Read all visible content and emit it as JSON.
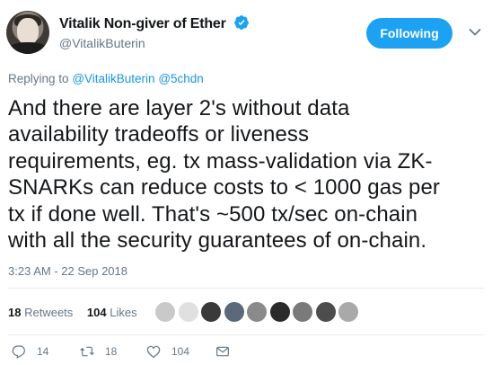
{
  "author": {
    "display_name": "Vitalik Non-giver of Ether",
    "handle": "@VitalikButerin"
  },
  "follow_button": {
    "label": "Following"
  },
  "reply_context": {
    "prefix": "Replying to",
    "mentions": [
      "@VitalikButerin",
      "@5chdn"
    ]
  },
  "tweet": {
    "lines": [
      "And there are layer 2's without data",
      "availability tradeoffs or liveness",
      "requirements, eg. tx mass-validation via ZK-",
      "SNARKs can reduce costs to < 1000 gas per",
      "tx if done well. That's ~500 tx/sec on-chain",
      "with all the security guarantees of on-chain."
    ],
    "timestamp": "3:23 AM - 22 Sep 2018"
  },
  "stats": {
    "retweets": {
      "count": "18",
      "label": "Retweets"
    },
    "likes": {
      "count": "104",
      "label": "Likes"
    }
  },
  "liker_avatars": [
    {
      "color": "#c9c9c9"
    },
    {
      "color": "#e0e0e0"
    },
    {
      "color": "#3a3a3a"
    },
    {
      "color": "#5a6a7a"
    },
    {
      "color": "#8a8a8a"
    },
    {
      "color": "#2b2b2b"
    },
    {
      "color": "#7a7a7a"
    },
    {
      "color": "#4d4d4d"
    },
    {
      "color": "#a9a9a9"
    }
  ],
  "actions": {
    "reply_count": "14",
    "retweet_count": "18",
    "like_count": "104"
  },
  "colors": {
    "brand_blue": "#1da1f2",
    "link_blue": "#1b95e0",
    "secondary_text": "#657786",
    "primary_text": "#14171a"
  }
}
